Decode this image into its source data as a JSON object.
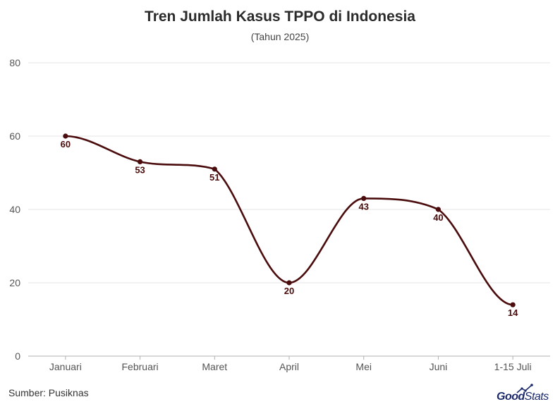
{
  "title": "Tren Jumlah Kasus TPPO di Indonesia",
  "subtitle": "(Tahun 2025)",
  "source": "Sumber: Pusiknas",
  "logo": {
    "good": "Good",
    "stats": "Stats"
  },
  "colors": {
    "line": "#4a0c0c",
    "grid": "#e6e6e6",
    "axis": "#b0b0b0",
    "tick": "#555555",
    "label": "#4a0c0c"
  },
  "chart_data": {
    "type": "line",
    "categories": [
      "Januari",
      "Februari",
      "Maret",
      "April",
      "Mei",
      "Juni",
      "1-15 Juli"
    ],
    "series": [
      {
        "values": [
          60,
          53,
          51,
          20,
          43,
          40,
          14
        ]
      }
    ],
    "ylim": [
      0,
      80
    ],
    "yticks": [
      0,
      20,
      40,
      60,
      80
    ],
    "grid": true,
    "data_labels": true
  }
}
